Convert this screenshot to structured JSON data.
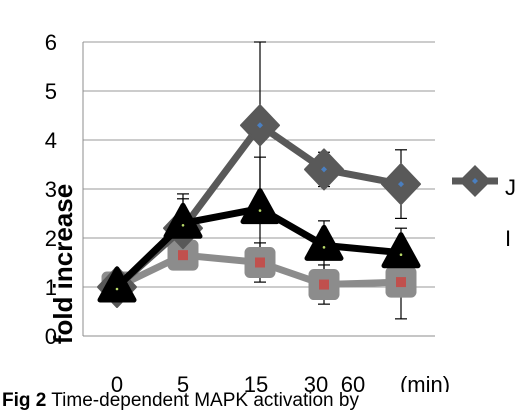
{
  "chart_data": {
    "type": "line",
    "title": "",
    "ylabel": "fold increase",
    "xlabel": "(min)",
    "categories": [
      "0",
      "5",
      "15",
      "30",
      "60"
    ],
    "ylim": [
      0,
      6
    ],
    "yticks": [
      "0",
      "1",
      "2",
      "3",
      "4",
      "5",
      "6"
    ],
    "grid": true,
    "legend_position": "right",
    "legend_visible_text": [
      "J",
      "I"
    ],
    "series": [
      {
        "values": [
          1.0,
          2.2,
          4.3,
          3.4,
          3.1
        ],
        "error": [
          0,
          0.6,
          1.7,
          0.35,
          0.7
        ],
        "color": "#595959",
        "marker": "diamond"
      },
      {
        "values": [
          1.0,
          2.3,
          2.6,
          1.85,
          1.7
        ],
        "error": [
          0,
          0.6,
          1.05,
          0.5,
          0.5
        ],
        "color": "#000000",
        "marker": "triangle"
      },
      {
        "values": [
          1.0,
          1.65,
          1.5,
          1.05,
          1.1
        ],
        "error": [
          0,
          0,
          0.4,
          0.4,
          0.75
        ],
        "color": "#8c8c8c",
        "marker": "square"
      }
    ]
  },
  "caption": {
    "label": "Fig 2",
    "text": " Time-dependent  MAPK  activation   by"
  }
}
